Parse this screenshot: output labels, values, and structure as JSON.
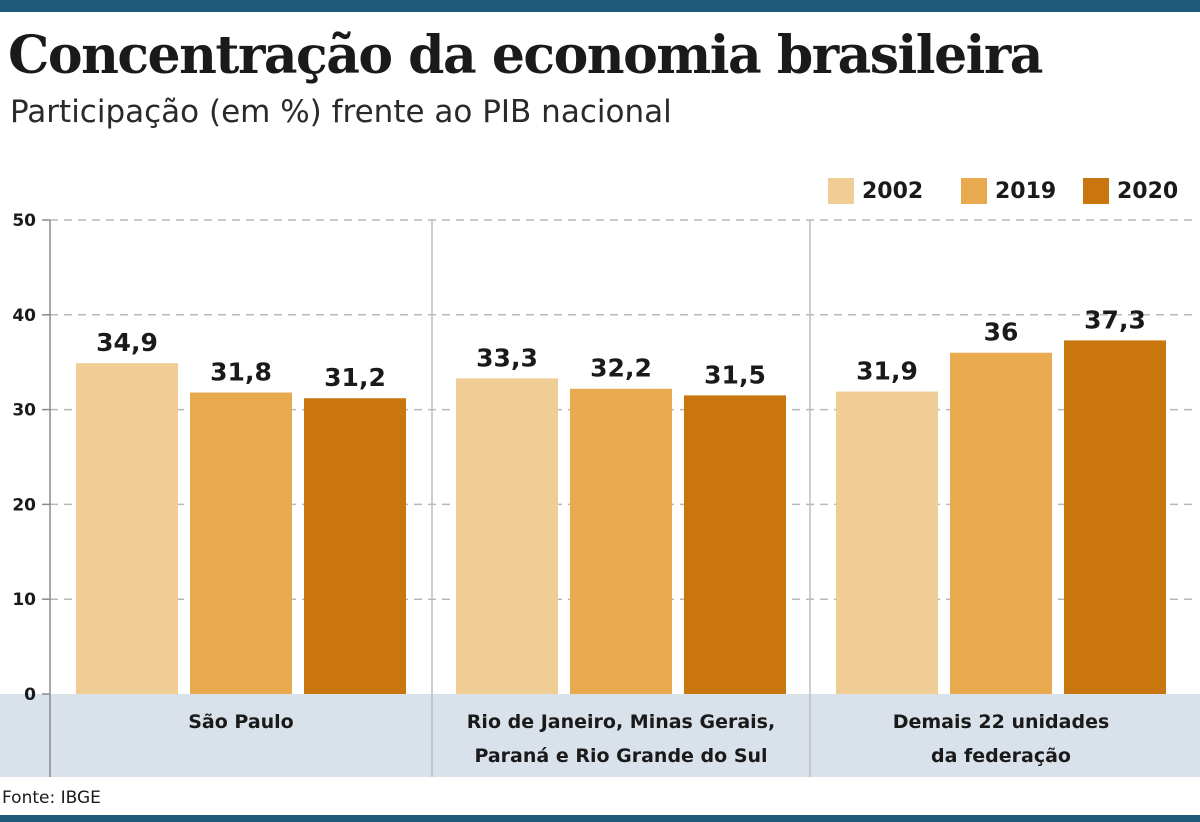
{
  "title": "Concentração da economia brasileira",
  "subtitle": "Participação (em %) frente ao PIB nacional",
  "source": "Fonte: IBGE",
  "colors": {
    "accent_bar": "#1f5a7a",
    "category_band": "#d9e2ea",
    "grid": "#b8b8b8"
  },
  "chart_data": {
    "type": "bar",
    "title": "Concentração da economia brasileira",
    "subtitle": "Participação (em %) frente ao PIB nacional",
    "xlabel": "",
    "ylabel": "",
    "ylim": [
      0,
      50
    ],
    "yticks": [
      0,
      10,
      20,
      30,
      40,
      50
    ],
    "grid": true,
    "legend_position": "top-right",
    "categories": [
      [
        "São Paulo"
      ],
      [
        "Rio de Janeiro, Minas Gerais,",
        "Paraná e Rio Grande do Sul"
      ],
      [
        "Demais 22 unidades",
        "da federação"
      ]
    ],
    "series": [
      {
        "name": "2002",
        "color": "#f0cd94",
        "values": [
          34.9,
          33.3,
          31.9
        ],
        "labels": [
          "34,9",
          "33,3",
          "31,9"
        ]
      },
      {
        "name": "2019",
        "color": "#e8a94f",
        "values": [
          31.8,
          32.2,
          36.0
        ],
        "labels": [
          "31,8",
          "32,2",
          "36"
        ]
      },
      {
        "name": "2020",
        "color": "#c9760f",
        "values": [
          31.2,
          31.5,
          37.3
        ],
        "labels": [
          "31,2",
          "31,5",
          "37,3"
        ]
      }
    ]
  }
}
